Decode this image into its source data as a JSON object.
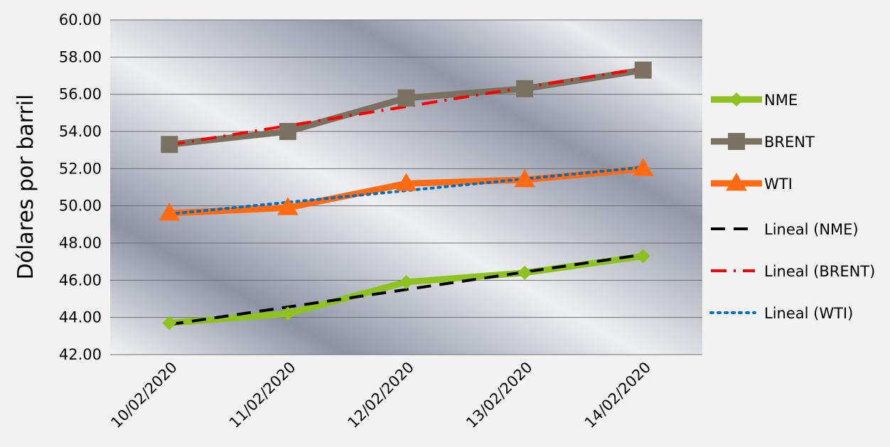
{
  "chart_data": {
    "type": "line",
    "title": "",
    "xlabel": "",
    "ylabel": "Dólares por barril",
    "categories": [
      "10/02/2020",
      "11/02/2020",
      "12/02/2020",
      "13/02/2020",
      "14/02/2020"
    ],
    "ylim": [
      42,
      60
    ],
    "y_tick_labels": [
      "42.00",
      "44.00",
      "46.00",
      "48.00",
      "50.00",
      "52.00",
      "54.00",
      "56.00",
      "58.00",
      "60.00"
    ],
    "grid": true,
    "legend_position": "right",
    "series": [
      {
        "name": "NME",
        "values": [
          43.7,
          44.2,
          45.9,
          46.4,
          47.3
        ],
        "color": "#8dc21f",
        "marker": "diamond"
      },
      {
        "name": "BRENT",
        "values": [
          53.3,
          54.0,
          55.8,
          56.3,
          57.3
        ],
        "color": "#7a7160",
        "marker": "square"
      },
      {
        "name": "WTI",
        "values": [
          49.6,
          49.9,
          51.2,
          51.4,
          52.0
        ],
        "color": "#ff6a13",
        "marker": "triangle"
      }
    ],
    "trendlines": [
      {
        "name": "Lineal (NME)",
        "of": "NME",
        "style": "dashed",
        "color": "#000000"
      },
      {
        "name": "Lineal (BRENT)",
        "of": "BRENT",
        "style": "dash-dot",
        "color": "#ff0000"
      },
      {
        "name": "Lineal (WTI)",
        "of": "WTI",
        "style": "dotted",
        "color": "#0070c0"
      }
    ]
  }
}
